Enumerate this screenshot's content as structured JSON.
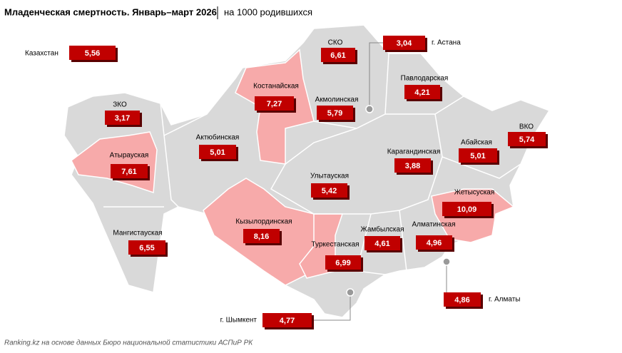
{
  "header": {
    "title": "Младенческая смертность. Январь–март 2026",
    "unit": "на 1000  родившихся"
  },
  "regions": [
    {
      "name": "Казахстан",
      "value": "5,56"
    },
    {
      "name": "СКО",
      "value": "6,61"
    },
    {
      "name": "г. Астана",
      "value": "3,04"
    },
    {
      "name": "Павлодарская",
      "value": "4,21"
    },
    {
      "name": "Костанайская",
      "value": "7,27"
    },
    {
      "name": "Акмолинская",
      "value": "5,79"
    },
    {
      "name": "ЗКО",
      "value": "3,17"
    },
    {
      "name": "ВКО",
      "value": "5,74"
    },
    {
      "name": "Актюбинская",
      "value": "5,01"
    },
    {
      "name": "Абайская",
      "value": "5,01"
    },
    {
      "name": "Атырауская",
      "value": "7,61"
    },
    {
      "name": "Карагандинская",
      "value": "3,88"
    },
    {
      "name": "Улытауская",
      "value": "5,42"
    },
    {
      "name": "Жетысуская",
      "value": "10,09"
    },
    {
      "name": "Мангистауская",
      "value": "6,55"
    },
    {
      "name": "Кызылординская",
      "value": "8,16"
    },
    {
      "name": "Жамбылская",
      "value": "4,61"
    },
    {
      "name": "Алматинская",
      "value": "4,96"
    },
    {
      "name": "Туркестанская",
      "value": "6,99"
    },
    {
      "name": "г. Алматы",
      "value": "4,86"
    },
    {
      "name": "г. Шымкент",
      "value": "4,77"
    }
  ],
  "footer": "Ranking.kz на основе данных Бюро национальной статистики АСПиР РК"
}
